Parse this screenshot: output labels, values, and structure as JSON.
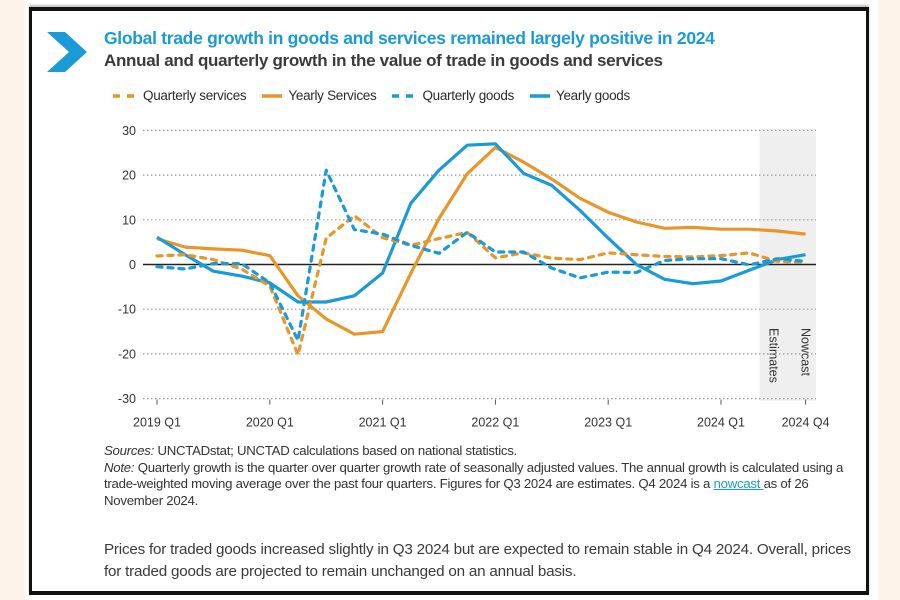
{
  "header": {
    "title": "Global trade growth in goods and services remained largely positive in 2024",
    "subtitle": "Annual and quarterly growth in the value of trade in goods and services",
    "icon": "chevron-right-icon"
  },
  "colors": {
    "services": "#e8962a",
    "goods": "#1a9ad6",
    "title": "#1a9ad6",
    "shade": "#efefef"
  },
  "chart_data": {
    "type": "line",
    "title": "Annual and quarterly growth in the value of trade in goods and services",
    "xlabel": "",
    "ylabel": "",
    "ylim": [
      -30,
      30
    ],
    "yticks": [
      30,
      20,
      10,
      0,
      -10,
      -20,
      -30
    ],
    "grid": true,
    "legend_position": "top",
    "x": [
      "2019 Q1",
      "2019 Q2",
      "2019 Q3",
      "2019 Q4",
      "2020 Q1",
      "2020 Q2",
      "2020 Q3",
      "2020 Q4",
      "2021 Q1",
      "2021 Q2",
      "2021 Q3",
      "2021 Q4",
      "2022 Q1",
      "2022 Q2",
      "2022 Q3",
      "2022 Q4",
      "2023 Q1",
      "2023 Q2",
      "2023 Q3",
      "2023 Q4",
      "2024 Q1",
      "2024 Q2",
      "2024 Q3",
      "2024 Q4"
    ],
    "xtick_labels": [
      {
        "index": 0,
        "label": "2019 Q1"
      },
      {
        "index": 4,
        "label": "2020 Q1"
      },
      {
        "index": 8,
        "label": "2021 Q1"
      },
      {
        "index": 12,
        "label": "2022 Q1"
      },
      {
        "index": 16,
        "label": "2023 Q1"
      },
      {
        "index": 20,
        "label": "2024 Q1"
      },
      {
        "index": 23,
        "label": "2024 Q4"
      }
    ],
    "series": [
      {
        "name": "Quarterly services",
        "style": "dashed",
        "color": "#e8962a",
        "values": [
          1.9,
          2.2,
          1.1,
          -1.0,
          -4.8,
          -20.2,
          5.9,
          10.9,
          6.0,
          4.3,
          5.8,
          7.2,
          1.5,
          2.6,
          1.4,
          1.1,
          2.6,
          2.2,
          1.8,
          1.7,
          2.0,
          2.6,
          0.7,
          0.5
        ]
      },
      {
        "name": "Yearly Services",
        "style": "solid",
        "color": "#e8962a",
        "values": [
          5.8,
          3.9,
          3.5,
          3.2,
          2.0,
          -7.0,
          -12.2,
          -15.6,
          -15.0,
          -2.0,
          10.3,
          20.3,
          26.2,
          22.9,
          19.1,
          14.8,
          11.7,
          9.5,
          8.1,
          8.3,
          7.9,
          7.9,
          7.5,
          6.8
        ]
      },
      {
        "name": "Quarterly goods",
        "style": "dashed",
        "color": "#1a9ad6",
        "values": [
          -0.5,
          -1.0,
          0.2,
          0.2,
          -4.1,
          -17.0,
          21.1,
          7.8,
          6.8,
          4.3,
          2.5,
          7.2,
          2.8,
          2.8,
          -0.8,
          -3.0,
          -1.7,
          -1.8,
          0.9,
          1.3,
          1.3,
          -0.1,
          1.3,
          0.7
        ]
      },
      {
        "name": "Yearly goods",
        "style": "solid",
        "color": "#1a9ad6",
        "values": [
          6.1,
          2.2,
          -1.5,
          -2.6,
          -4.1,
          -8.4,
          -8.4,
          -7.0,
          -1.9,
          13.7,
          21.1,
          26.7,
          27.0,
          20.4,
          17.7,
          12.1,
          5.9,
          0.0,
          -3.3,
          -4.3,
          -3.7,
          -1.3,
          1.1,
          2.2
        ]
      }
    ],
    "shaded_region": {
      "from_index": 22,
      "to_index": 23,
      "labels": [
        "Estimates",
        "Nowcast"
      ]
    }
  },
  "notes": {
    "sources_label": "Sources:",
    "sources_text": " UNCTADstat; UNCTAD calculations based on national statistics.",
    "note_label": "Note:",
    "note_text": " Quarterly growth is the quarter over quarter growth rate of seasonally adjusted values. The annual growth is calculated using a trade-weighted moving average over the past four quarters. Figures for Q3 2024 are estimates. Q4 2024 is a ",
    "link_text": "nowcast ",
    "note_tail": "as of 26 November 2024."
  },
  "summary": "Prices for traded goods increased slightly in Q3 2024 but are expected to remain stable in Q4 2024. Overall, prices for traded goods are projected to remain unchanged on an annual basis."
}
